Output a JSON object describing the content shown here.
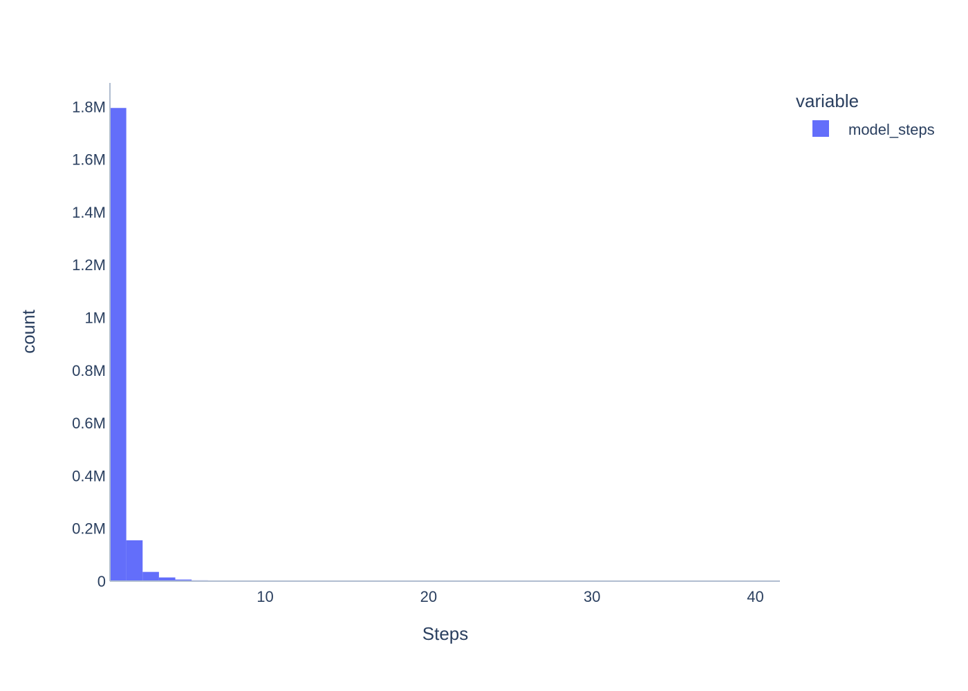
{
  "chart_data": {
    "type": "bar",
    "title": "",
    "xlabel": "Steps",
    "ylabel": "count",
    "xlim": [
      0.5,
      41.5
    ],
    "ylim": [
      0,
      1890000
    ],
    "xticks": [
      10,
      20,
      30,
      40
    ],
    "xtick_labels": [
      "10",
      "20",
      "30",
      "40"
    ],
    "yticks": [
      0,
      200000,
      400000,
      600000,
      800000,
      1000000,
      1200000,
      1400000,
      1600000,
      1800000
    ],
    "ytick_labels": [
      "0",
      "0.2M",
      "0.4M",
      "0.6M",
      "0.8M",
      "1M",
      "1.2M",
      "1.4M",
      "1.6M",
      "1.8M"
    ],
    "grid": false,
    "legend_title": "variable",
    "legend_position": "top-right",
    "series": [
      {
        "name": "model_steps",
        "color": "#636efa",
        "x": [
          1,
          2,
          3,
          4,
          5,
          6,
          7,
          8,
          9,
          10
        ],
        "values": [
          1795000,
          155000,
          35000,
          14000,
          6000,
          3000,
          2000,
          1000,
          500,
          300
        ]
      }
    ]
  }
}
